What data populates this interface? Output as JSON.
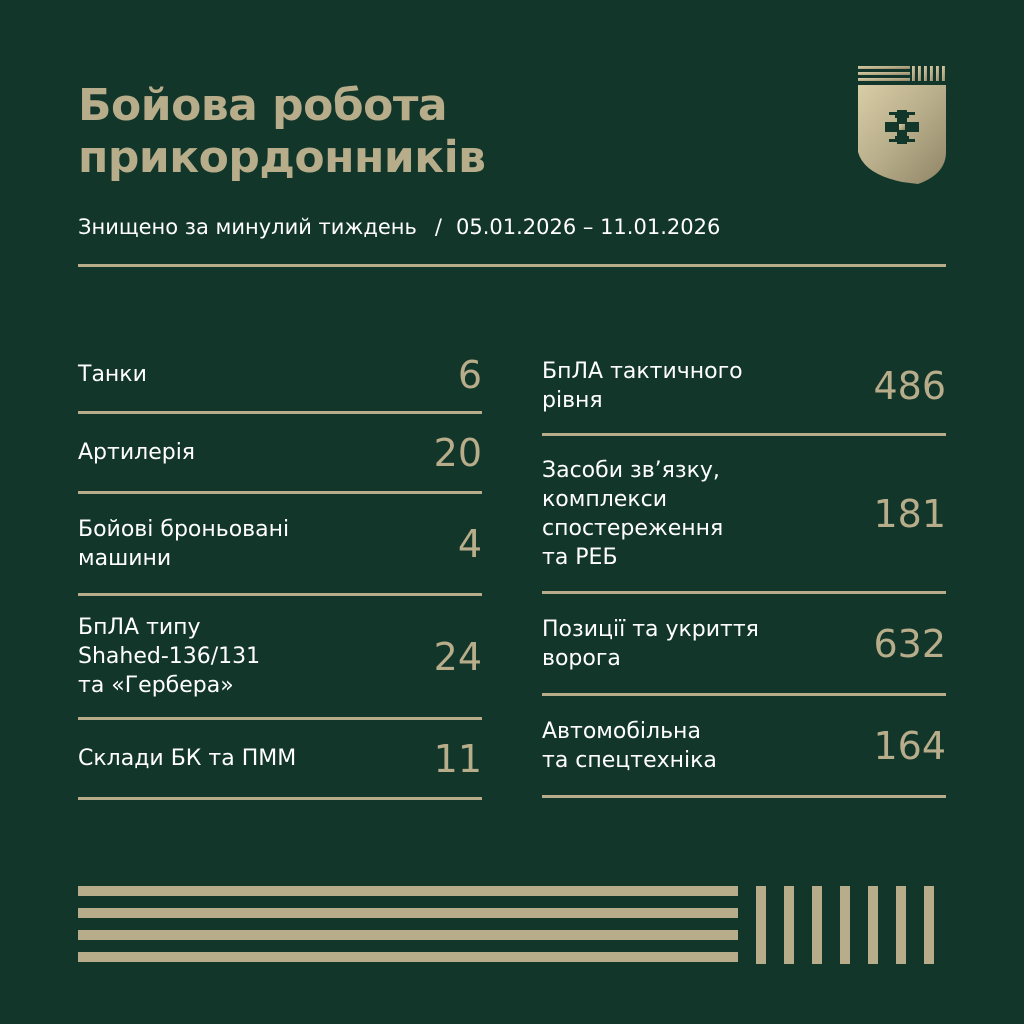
{
  "header": {
    "title_line1": "Бойова робота",
    "title_line2": "прикордонників",
    "subtitle": "Знищено за минулий тиждень",
    "separator": "/",
    "date_range": "05.01.2026 – 11.01.2026"
  },
  "emblem": {
    "icon": "border-guard-shield-emblem",
    "color": "#b8ad8a"
  },
  "colors": {
    "background": "#13362b",
    "accent": "#b8ad8a",
    "text": "#ffffff"
  },
  "stats_left": [
    {
      "lines": [
        "Танки"
      ],
      "value": "6"
    },
    {
      "lines": [
        "Артилерія"
      ],
      "value": "20"
    },
    {
      "lines": [
        "Бойові броньовані",
        "машини"
      ],
      "value": "4"
    },
    {
      "lines": [
        "БпЛА типу",
        "Shahed-136/131",
        "та «Гербера»"
      ],
      "value": "24"
    },
    {
      "lines": [
        "Склади БК та ПММ"
      ],
      "value": "11"
    }
  ],
  "stats_right": [
    {
      "lines": [
        "БпЛА тактичного",
        "рівня"
      ],
      "value": "486"
    },
    {
      "lines": [
        "Засоби зв’язку,",
        "комплекси",
        "спостереження",
        "та РЕБ"
      ],
      "value": "181"
    },
    {
      "lines": [
        "Позиції та укриття",
        "ворога"
      ],
      "value": "632"
    },
    {
      "lines": [
        "Автомобільна",
        "та спецтехніка"
      ],
      "value": "164"
    }
  ]
}
